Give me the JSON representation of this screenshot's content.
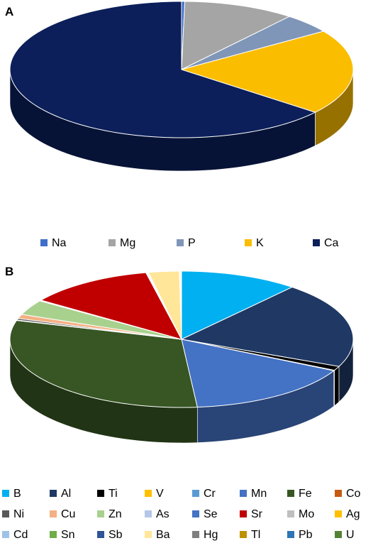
{
  "chart_data": [
    {
      "type": "pie",
      "panel": "A",
      "categories": [
        "Na",
        "Mg",
        "P",
        "K",
        "Ca"
      ],
      "values": [
        0.3,
        10.5,
        4.7,
        20.3,
        64.2
      ],
      "colors": [
        "#3f6fc9",
        "#a5a5a5",
        "#7f96b8",
        "#fbbd00",
        "#0c1f5a"
      ],
      "legend": "bottom"
    },
    {
      "type": "pie",
      "panel": "B",
      "categories": [
        "B",
        "Al",
        "Ti",
        "V",
        "Cr",
        "Mn",
        "Fe",
        "Co",
        "Ni",
        "Cu",
        "Zn",
        "As",
        "Se",
        "Sr",
        "Mo",
        "Ag",
        "Cd",
        "Sn",
        "Sb",
        "Ba",
        "Hg",
        "Tl",
        "Pb",
        "U"
      ],
      "values": [
        11.2,
        20.5,
        1.0,
        0.05,
        0.05,
        16.0,
        31.1,
        0.1,
        0.4,
        1.0,
        3.6,
        0.1,
        0.1,
        12.0,
        0.05,
        0.05,
        0.05,
        0.05,
        0.05,
        2.9,
        0.05,
        0.05,
        0.05,
        0.05
      ],
      "colors": [
        "#00b0f0",
        "#1f3864",
        "#000000",
        "#ffc000",
        "#5b9bd5",
        "#4472c4",
        "#375623",
        "#c55a11",
        "#595959",
        "#f4b183",
        "#a9d18e",
        "#b4c7e7",
        "#4472c4",
        "#c00000",
        "#bfbfbf",
        "#ffc000",
        "#9dc3e6",
        "#70ad47",
        "#2f5597",
        "#ffe699",
        "#7f7f7f",
        "#bf9000",
        "#2e75b6",
        "#548235"
      ],
      "legend": "bottom"
    }
  ]
}
